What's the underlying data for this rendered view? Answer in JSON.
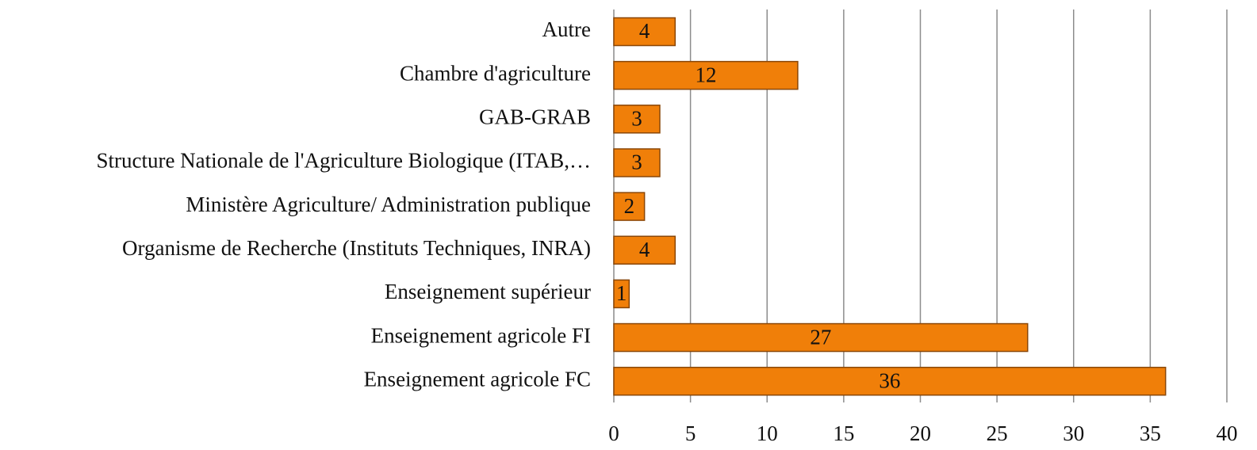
{
  "chart_data": {
    "type": "bar",
    "orientation": "horizontal",
    "categories": [
      "Autre",
      "Chambre d'agriculture",
      "GAB-GRAB",
      "Structure Nationale de l'Agriculture Biologique (ITAB,…",
      "Ministère Agriculture/ Administration publique",
      "Organisme de Recherche (Instituts Techniques, INRA)",
      "Enseignement supérieur",
      "Enseignement agricole FI",
      "Enseignement agricole FC"
    ],
    "values": [
      4,
      12,
      3,
      3,
      2,
      4,
      1,
      27,
      36
    ],
    "color": "#f07f09",
    "xlim": [
      0,
      40
    ],
    "xticks": [
      0,
      5,
      10,
      15,
      20,
      25,
      30,
      35,
      40
    ],
    "grid": true
  }
}
